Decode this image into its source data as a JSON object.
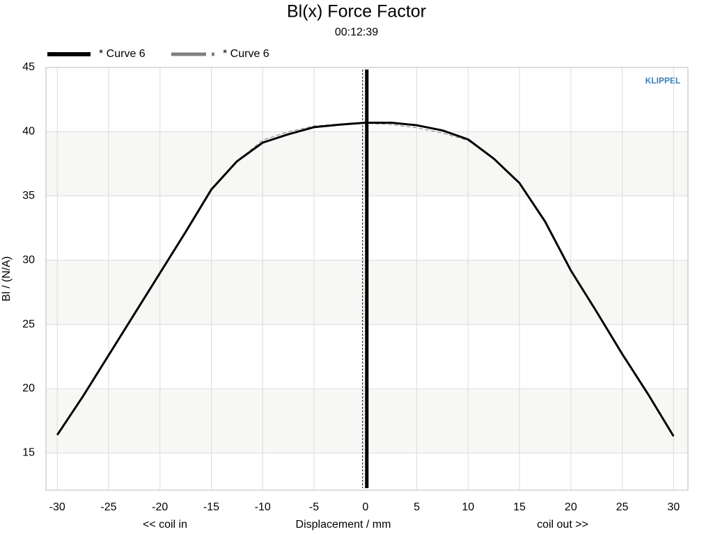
{
  "chart_data": {
    "type": "line",
    "title": "Bl(x) Force Factor",
    "subtitle": "00:12:39",
    "x_label": "Displacement / mm",
    "y_label": "Bl / (N/A)",
    "x_left_note": "<< coil in",
    "x_right_note": "coil out >>",
    "logo": "KLIPPEL",
    "x": [
      -30,
      -27.5,
      -25,
      -22.5,
      -20,
      -17.5,
      -15,
      -12.5,
      -10,
      -7.5,
      -5,
      -2.5,
      0,
      2.5,
      5,
      7.5,
      10,
      12.5,
      15,
      17.5,
      20,
      22.5,
      25,
      27.5,
      30
    ],
    "series": [
      {
        "name": "* Curve 6",
        "color": "#000000",
        "dash": false,
        "values": [
          16.4,
          19.4,
          22.6,
          25.8,
          29.0,
          32.2,
          35.5,
          37.7,
          39.15,
          39.8,
          40.35,
          40.55,
          40.7,
          40.7,
          40.5,
          40.1,
          39.4,
          37.9,
          36.0,
          33.0,
          29.2,
          26.0,
          22.7,
          19.6,
          16.3
        ]
      },
      {
        "name": "* Curve 6",
        "color": "#808080",
        "dash": true,
        "values": [
          16.4,
          19.4,
          22.6,
          25.8,
          29.0,
          32.2,
          35.5,
          37.7,
          39.35,
          40.0,
          40.45,
          40.6,
          40.65,
          40.55,
          40.3,
          39.9,
          39.3,
          37.9,
          36.0,
          33.0,
          29.2,
          26.0,
          22.7,
          19.6,
          16.3
        ]
      }
    ],
    "cursor_x": 0,
    "xlim": [
      -31.1,
      31.4
    ],
    "ylim": [
      12.1,
      45
    ],
    "xticks": [
      -30,
      -25,
      -20,
      -15,
      -10,
      -5,
      0,
      5,
      10,
      15,
      20,
      25,
      30
    ],
    "yticks": [
      15,
      20,
      25,
      30,
      35,
      40,
      45
    ],
    "grid": true
  }
}
